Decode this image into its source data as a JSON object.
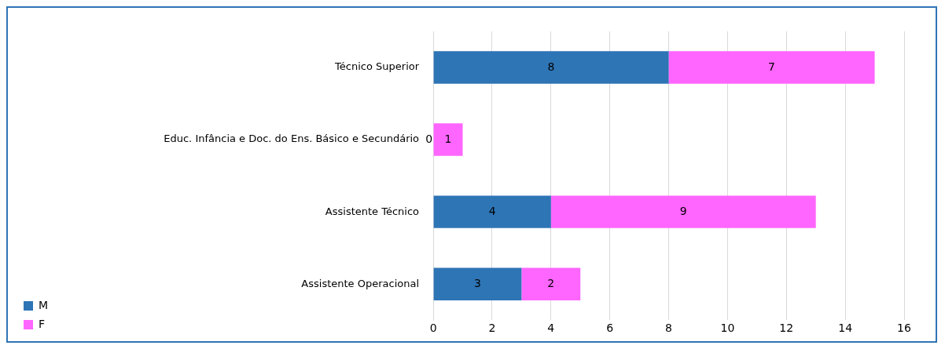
{
  "chart_data": {
    "type": "bar",
    "orientation": "horizontal",
    "stacked": true,
    "categories": [
      "Técnico Superior",
      "Educ. Infância e Doc. do Ens. Básico e Secundário",
      "Assistente Técnico",
      "Assistente Operacional"
    ],
    "series": [
      {
        "name": "M",
        "color": "#2e75b6",
        "values": [
          8,
          0,
          4,
          3
        ]
      },
      {
        "name": "F",
        "color": "#ff66ff",
        "values": [
          7,
          1,
          9,
          2
        ]
      }
    ],
    "xlim": [
      0,
      16
    ],
    "xticks": [
      0,
      2,
      4,
      6,
      8,
      10,
      12,
      14,
      16
    ],
    "grid": "x",
    "legend": "left",
    "data_labels": true
  }
}
